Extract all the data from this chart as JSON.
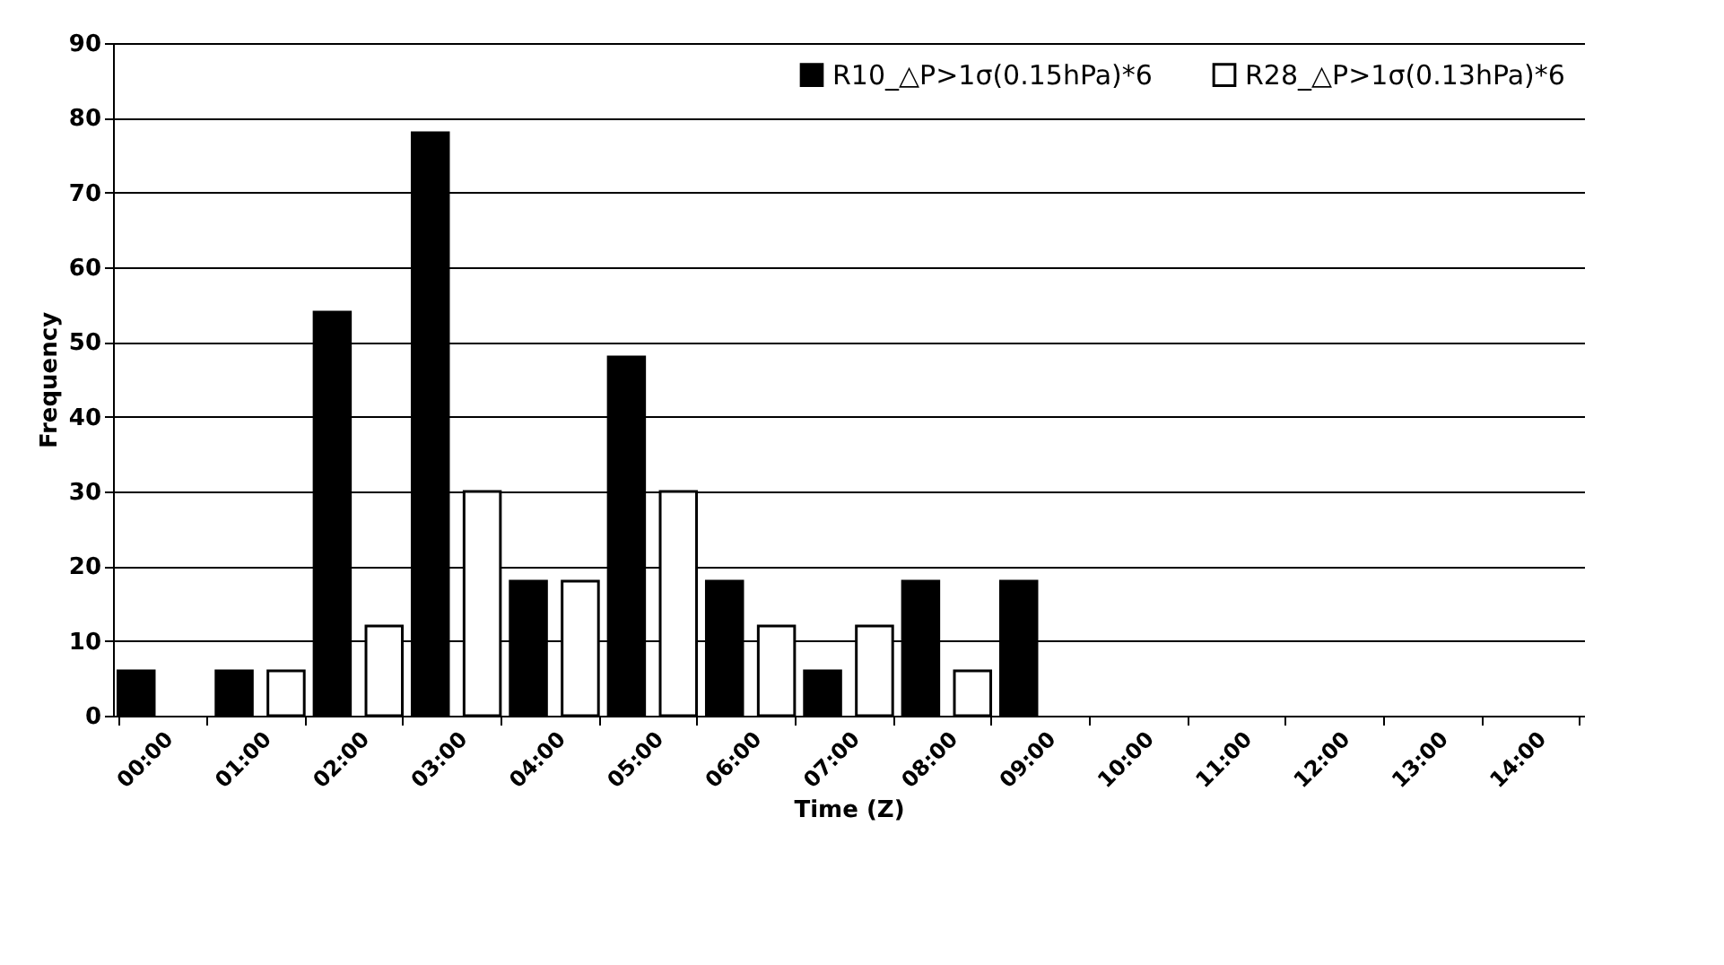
{
  "chart_data": {
    "type": "bar",
    "xlabel": "Time (Z)",
    "ylabel": "Frequency",
    "categories": [
      "00:00",
      "01:00",
      "02:00",
      "03:00",
      "04:00",
      "05:00",
      "06:00",
      "07:00",
      "08:00",
      "09:00",
      "10:00",
      "11:00",
      "12:00",
      "13:00",
      "14:00"
    ],
    "series": [
      {
        "name": "R10_△P>1σ(0.15hPa)*6",
        "color": "#000000",
        "values": [
          6,
          6,
          54,
          78,
          18,
          48,
          18,
          6,
          18,
          18,
          null,
          null,
          null,
          null,
          null
        ]
      },
      {
        "name": "R28_△P>1σ(0.13hPa)*6",
        "color": "#ffffff",
        "values": [
          null,
          6,
          12,
          30,
          18,
          30,
          12,
          12,
          6,
          null,
          null,
          null,
          null,
          null,
          null
        ]
      }
    ],
    "ylim": [
      0,
      90
    ],
    "yticks": [
      0,
      10,
      20,
      30,
      40,
      50,
      60,
      70,
      80,
      90
    ],
    "grid": "y",
    "legend": "top right"
  }
}
